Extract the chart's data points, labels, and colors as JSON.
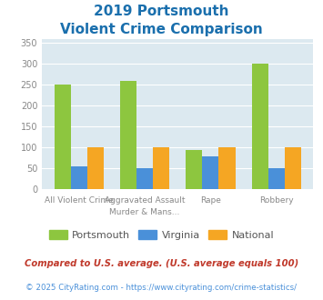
{
  "title_line1": "2019 Portsmouth",
  "title_line2": "Violent Crime Comparison",
  "top_labels": [
    "",
    "Aggravated Assault",
    "",
    ""
  ],
  "bottom_labels": [
    "All Violent Crime",
    "Murder & Mans...",
    "Rape",
    "Robbery"
  ],
  "portsmouth": [
    250,
    260,
    93,
    301
  ],
  "virginia": [
    55,
    50,
    79,
    50
  ],
  "national": [
    100,
    100,
    100,
    100
  ],
  "portsmouth_color": "#8dc63f",
  "virginia_color": "#4a90d9",
  "national_color": "#f5a623",
  "ylim": [
    0,
    360
  ],
  "yticks": [
    0,
    50,
    100,
    150,
    200,
    250,
    300,
    350
  ],
  "plot_bg_color": "#dce9f0",
  "title_color": "#1a6fad",
  "tick_label_color": "#888888",
  "footnote1": "Compared to U.S. average. (U.S. average equals 100)",
  "footnote2": "© 2025 CityRating.com - https://www.cityrating.com/crime-statistics/",
  "footnote1_color": "#c0392b",
  "footnote2_color": "#4a90d9",
  "legend_text_color": "#555555",
  "bar_width": 0.25,
  "grid_color": "#ffffff"
}
